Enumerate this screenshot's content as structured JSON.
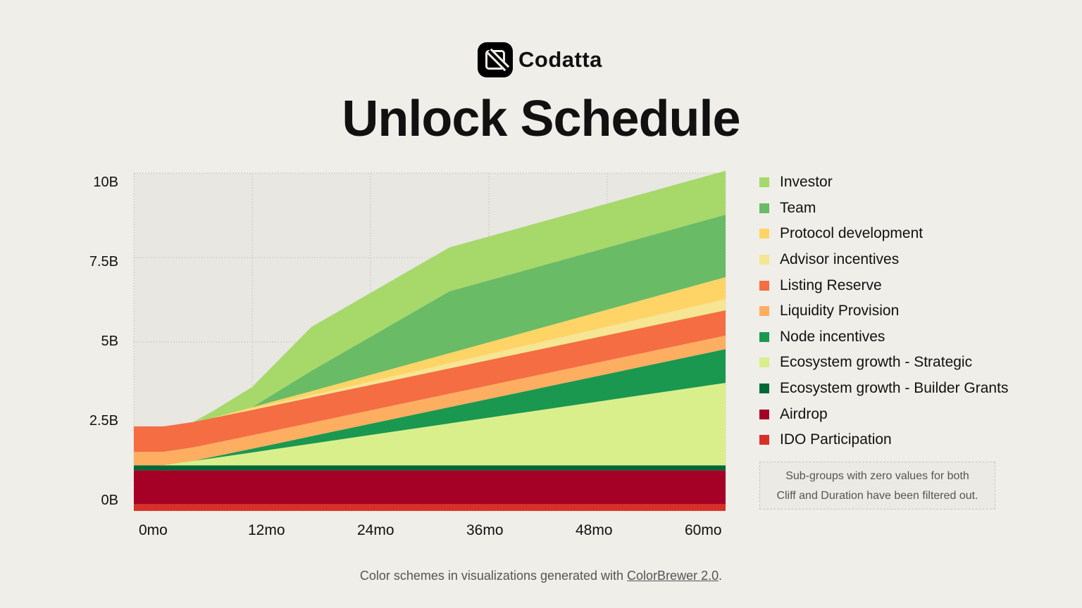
{
  "brand": {
    "name": "Codatta",
    "icon": "codatta-logo-icon"
  },
  "chart_data": {
    "type": "area",
    "stacked": true,
    "title": "Unlock Schedule",
    "xlabel": "",
    "ylabel": "",
    "x_unit": "months",
    "x": [
      0,
      3,
      6,
      8,
      12,
      18,
      32,
      60
    ],
    "xlim": [
      0,
      60
    ],
    "ylim": [
      0,
      10
    ],
    "x_ticks": [
      {
        "v": 0,
        "label": "0mo"
      },
      {
        "v": 12,
        "label": "12mo"
      },
      {
        "v": 24,
        "label": "24mo"
      },
      {
        "v": 36,
        "label": "36mo"
      },
      {
        "v": 48,
        "label": "48mo"
      },
      {
        "v": 60,
        "label": "60mo"
      }
    ],
    "y_ticks": [
      {
        "v": 0,
        "label": "0B"
      },
      {
        "v": 2.5,
        "label": "2.5B"
      },
      {
        "v": 5,
        "label": "5B"
      },
      {
        "v": 7.5,
        "label": "7.5B"
      },
      {
        "v": 10,
        "label": "10B"
      }
    ],
    "grid": true,
    "legend_position": "right",
    "series_bottom_to_top": [
      {
        "name": "IDO Participation",
        "color": "#d73027",
        "values": [
          0.2,
          0.2,
          0.2,
          0.2,
          0.2,
          0.2,
          0.2,
          0.2
        ]
      },
      {
        "name": "Airdrop",
        "color": "#a50026",
        "values": [
          1.0,
          1.0,
          1.0,
          1.0,
          1.0,
          1.0,
          1.0,
          1.0
        ]
      },
      {
        "name": "Ecosystem growth - Builder Grants",
        "color": "#006837",
        "values": [
          0.15,
          0.15,
          0.15,
          0.15,
          0.15,
          0.15,
          0.15,
          0.15
        ]
      },
      {
        "name": "Ecosystem growth - Strategic",
        "color": "#d9ef8b",
        "values": [
          0,
          0,
          0.13,
          0.21,
          0.38,
          0.64,
          1.24,
          2.44
        ]
      },
      {
        "name": "Node incentives",
        "color": "#1a9850",
        "values": [
          0,
          0,
          0,
          0.04,
          0.11,
          0.22,
          0.48,
          1.0
        ]
      },
      {
        "name": "Liquidity Provision",
        "color": "#fdae61",
        "values": [
          0.4,
          0.4,
          0.4,
          0.4,
          0.4,
          0.4,
          0.4,
          0.4
        ]
      },
      {
        "name": "Listing Reserve",
        "color": "#f46d43",
        "values": [
          0.75,
          0.75,
          0.75,
          0.75,
          0.75,
          0.75,
          0.75,
          0.75
        ]
      },
      {
        "name": "Advisor incentives",
        "color": "#f6e593",
        "values": [
          0,
          0,
          0,
          0,
          0.03,
          0.06,
          0.15,
          0.33
        ]
      },
      {
        "name": "Protocol development",
        "color": "#fed466",
        "values": [
          0,
          0,
          0,
          0,
          0.05,
          0.125,
          0.3,
          0.65
        ]
      },
      {
        "name": "Team",
        "color": "#6abb66",
        "values": [
          0,
          0,
          0,
          0,
          0,
          0.6,
          1.83,
          1.85
        ]
      },
      {
        "name": "Investor",
        "color": "#a6d96a",
        "values": [
          0,
          0,
          0,
          0.2,
          0.6,
          1.3,
          1.3,
          1.3
        ]
      }
    ]
  },
  "legend_order": [
    "Investor",
    "Team",
    "Protocol development",
    "Advisor incentives",
    "Listing Reserve",
    "Liquidity Provision",
    "Node incentives",
    "Ecosystem growth - Strategic",
    "Ecosystem growth - Builder Grants",
    "Airdrop",
    "IDO Participation"
  ],
  "note": {
    "line1": "Sub-groups with zero values for both",
    "line2": "Cliff and Duration have been filtered out."
  },
  "footer": {
    "prefix": "Color schemes in visualizations generated with ",
    "link": "ColorBrewer 2.0",
    "suffix": "."
  }
}
